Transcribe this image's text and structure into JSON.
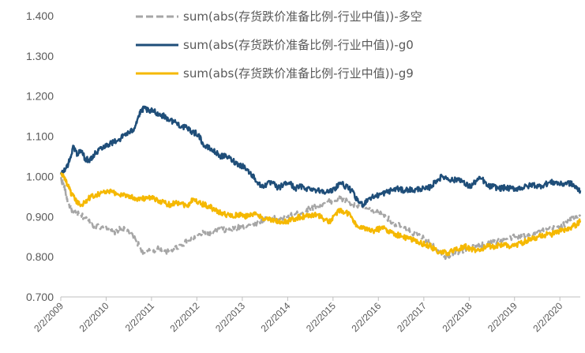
{
  "chart_data": {
    "type": "line",
    "title": "",
    "xlabel": "",
    "ylabel": "",
    "ylim": [
      0.7,
      1.4
    ],
    "y_ticks": [
      "0.700",
      "0.800",
      "0.900",
      "1.000",
      "1.100",
      "1.200",
      "1.300",
      "1.400"
    ],
    "x_ticks": [
      "2/2/2009",
      "2/2/2010",
      "2/2/2011",
      "2/2/2012",
      "2/2/2013",
      "2/2/2014",
      "2/2/2015",
      "2/2/2016",
      "2/2/2017",
      "2/2/2018",
      "2/2/2019",
      "2/2/2020"
    ],
    "x_range": [
      "2009-02-02",
      "2020-07-15"
    ],
    "grid": false,
    "legend_position": "top-center",
    "series": [
      {
        "name": "sum(abs(存货跌价准备比例-行业中值))-多空",
        "color": "#A6A6A6",
        "style": "dashed",
        "points": [
          [
            "2009-02-02",
            0.995
          ],
          [
            "2009-03-01",
            0.975
          ],
          [
            "2009-04-01",
            0.935
          ],
          [
            "2009-05-15",
            0.91
          ],
          [
            "2009-07-01",
            0.905
          ],
          [
            "2009-09-01",
            0.895
          ],
          [
            "2009-11-01",
            0.875
          ],
          [
            "2010-02-02",
            0.875
          ],
          [
            "2010-04-01",
            0.86
          ],
          [
            "2010-06-01",
            0.87
          ],
          [
            "2010-08-01",
            0.865
          ],
          [
            "2010-10-01",
            0.84
          ],
          [
            "2010-12-01",
            0.81
          ],
          [
            "2011-02-02",
            0.815
          ],
          [
            "2011-04-01",
            0.82
          ],
          [
            "2011-06-01",
            0.81
          ],
          [
            "2011-08-01",
            0.82
          ],
          [
            "2011-10-01",
            0.83
          ],
          [
            "2011-12-01",
            0.84
          ],
          [
            "2012-02-02",
            0.85
          ],
          [
            "2012-04-01",
            0.86
          ],
          [
            "2012-06-01",
            0.855
          ],
          [
            "2012-08-01",
            0.87
          ],
          [
            "2012-10-01",
            0.865
          ],
          [
            "2012-12-01",
            0.87
          ],
          [
            "2013-02-02",
            0.875
          ],
          [
            "2013-04-01",
            0.88
          ],
          [
            "2013-06-01",
            0.885
          ],
          [
            "2013-08-01",
            0.895
          ],
          [
            "2013-10-01",
            0.895
          ],
          [
            "2013-12-01",
            0.895
          ],
          [
            "2014-02-02",
            0.9
          ],
          [
            "2014-04-01",
            0.905
          ],
          [
            "2014-06-01",
            0.91
          ],
          [
            "2014-08-01",
            0.92
          ],
          [
            "2014-10-01",
            0.925
          ],
          [
            "2014-12-01",
            0.935
          ],
          [
            "2015-02-02",
            0.94
          ],
          [
            "2015-04-01",
            0.945
          ],
          [
            "2015-05-15",
            0.94
          ],
          [
            "2015-07-01",
            0.93
          ],
          [
            "2015-09-01",
            0.925
          ],
          [
            "2015-11-01",
            0.92
          ],
          [
            "2016-02-02",
            0.91
          ],
          [
            "2016-04-01",
            0.9
          ],
          [
            "2016-06-01",
            0.885
          ],
          [
            "2016-08-01",
            0.875
          ],
          [
            "2016-10-01",
            0.865
          ],
          [
            "2016-12-01",
            0.855
          ],
          [
            "2017-02-02",
            0.845
          ],
          [
            "2017-04-01",
            0.835
          ],
          [
            "2017-06-01",
            0.815
          ],
          [
            "2017-08-01",
            0.8
          ],
          [
            "2017-10-01",
            0.81
          ],
          [
            "2017-12-01",
            0.815
          ],
          [
            "2018-02-02",
            0.82
          ],
          [
            "2018-04-01",
            0.825
          ],
          [
            "2018-06-01",
            0.83
          ],
          [
            "2018-08-01",
            0.835
          ],
          [
            "2018-10-01",
            0.84
          ],
          [
            "2018-12-01",
            0.845
          ],
          [
            "2019-02-02",
            0.85
          ],
          [
            "2019-04-01",
            0.85
          ],
          [
            "2019-06-01",
            0.855
          ],
          [
            "2019-08-01",
            0.86
          ],
          [
            "2019-10-01",
            0.865
          ],
          [
            "2019-12-01",
            0.87
          ],
          [
            "2020-02-02",
            0.875
          ],
          [
            "2020-04-01",
            0.885
          ],
          [
            "2020-06-01",
            0.9
          ],
          [
            "2020-07-15",
            0.905
          ]
        ]
      },
      {
        "name": "sum(abs(存货跌价准备比例-行业中值))-g0",
        "color": "#1F4E79",
        "style": "solid",
        "points": [
          [
            "2009-02-02",
            1.005
          ],
          [
            "2009-03-15",
            1.02
          ],
          [
            "2009-04-15",
            1.04
          ],
          [
            "2009-05-15",
            1.075
          ],
          [
            "2009-06-15",
            1.055
          ],
          [
            "2009-07-15",
            1.065
          ],
          [
            "2009-08-15",
            1.045
          ],
          [
            "2009-09-15",
            1.04
          ],
          [
            "2009-10-15",
            1.05
          ],
          [
            "2009-11-15",
            1.06
          ],
          [
            "2009-12-15",
            1.07
          ],
          [
            "2010-01-15",
            1.075
          ],
          [
            "2010-02-15",
            1.08
          ],
          [
            "2010-04-01",
            1.085
          ],
          [
            "2010-06-01",
            1.095
          ],
          [
            "2010-07-01",
            1.105
          ],
          [
            "2010-08-15",
            1.11
          ],
          [
            "2010-09-15",
            1.12
          ],
          [
            "2010-10-15",
            1.145
          ],
          [
            "2010-11-15",
            1.165
          ],
          [
            "2010-12-15",
            1.17
          ],
          [
            "2011-01-15",
            1.16
          ],
          [
            "2011-02-15",
            1.165
          ],
          [
            "2011-04-01",
            1.155
          ],
          [
            "2011-05-15",
            1.15
          ],
          [
            "2011-07-01",
            1.14
          ],
          [
            "2011-08-15",
            1.135
          ],
          [
            "2011-10-01",
            1.125
          ],
          [
            "2011-11-15",
            1.12
          ],
          [
            "2012-01-01",
            1.11
          ],
          [
            "2012-02-15",
            1.105
          ],
          [
            "2012-04-01",
            1.075
          ],
          [
            "2012-05-15",
            1.07
          ],
          [
            "2012-07-01",
            1.06
          ],
          [
            "2012-08-15",
            1.05
          ],
          [
            "2012-10-01",
            1.05
          ],
          [
            "2012-11-15",
            1.04
          ],
          [
            "2013-01-01",
            1.03
          ],
          [
            "2013-02-15",
            1.025
          ],
          [
            "2013-04-01",
            1.01
          ],
          [
            "2013-05-15",
            0.995
          ],
          [
            "2013-07-01",
            0.975
          ],
          [
            "2013-08-15",
            0.98
          ],
          [
            "2013-10-01",
            0.985
          ],
          [
            "2013-11-15",
            0.97
          ],
          [
            "2014-01-01",
            0.98
          ],
          [
            "2014-02-15",
            0.985
          ],
          [
            "2014-04-01",
            0.97
          ],
          [
            "2014-05-15",
            0.975
          ],
          [
            "2014-07-01",
            0.97
          ],
          [
            "2014-08-15",
            0.97
          ],
          [
            "2014-10-01",
            0.965
          ],
          [
            "2014-11-15",
            0.965
          ],
          [
            "2015-01-01",
            0.96
          ],
          [
            "2015-02-15",
            0.97
          ],
          [
            "2015-04-01",
            0.985
          ],
          [
            "2015-05-15",
            0.975
          ],
          [
            "2015-07-01",
            0.965
          ],
          [
            "2015-08-15",
            0.94
          ],
          [
            "2015-10-01",
            0.93
          ],
          [
            "2015-11-15",
            0.945
          ],
          [
            "2016-01-01",
            0.95
          ],
          [
            "2016-02-15",
            0.955
          ],
          [
            "2016-04-01",
            0.96
          ],
          [
            "2016-05-15",
            0.965
          ],
          [
            "2016-07-01",
            0.97
          ],
          [
            "2016-08-15",
            0.965
          ],
          [
            "2016-10-01",
            0.968
          ],
          [
            "2016-11-15",
            0.965
          ],
          [
            "2017-01-01",
            0.97
          ],
          [
            "2017-02-15",
            0.968
          ],
          [
            "2017-04-01",
            0.975
          ],
          [
            "2017-05-15",
            0.99
          ],
          [
            "2017-07-01",
            1.0
          ],
          [
            "2017-08-15",
            0.995
          ],
          [
            "2017-10-01",
            0.99
          ],
          [
            "2017-11-15",
            0.995
          ],
          [
            "2018-01-01",
            0.98
          ],
          [
            "2018-02-15",
            0.975
          ],
          [
            "2018-04-01",
            0.99
          ],
          [
            "2018-05-15",
            0.995
          ],
          [
            "2018-07-01",
            0.975
          ],
          [
            "2018-08-15",
            0.975
          ],
          [
            "2018-10-01",
            0.97
          ],
          [
            "2018-11-15",
            0.972
          ],
          [
            "2019-01-01",
            0.97
          ],
          [
            "2019-02-15",
            0.97
          ],
          [
            "2019-04-01",
            0.972
          ],
          [
            "2019-05-15",
            0.975
          ],
          [
            "2019-07-01",
            0.98
          ],
          [
            "2019-08-15",
            0.975
          ],
          [
            "2019-10-01",
            0.98
          ],
          [
            "2019-11-15",
            0.985
          ],
          [
            "2020-01-01",
            0.985
          ],
          [
            "2020-02-15",
            0.98
          ],
          [
            "2020-04-01",
            0.985
          ],
          [
            "2020-05-15",
            0.98
          ],
          [
            "2020-06-15",
            0.97
          ],
          [
            "2020-07-15",
            0.965
          ]
        ]
      },
      {
        "name": "sum(abs(存货跌价准备比例-行业中值))-g9",
        "color": "#F5B800",
        "style": "solid",
        "points": [
          [
            "2009-02-02",
            1.005
          ],
          [
            "2009-03-01",
            1.0
          ],
          [
            "2009-04-01",
            0.975
          ],
          [
            "2009-05-01",
            0.955
          ],
          [
            "2009-06-01",
            0.94
          ],
          [
            "2009-07-01",
            0.93
          ],
          [
            "2009-08-15",
            0.935
          ],
          [
            "2009-10-01",
            0.95
          ],
          [
            "2009-11-15",
            0.955
          ],
          [
            "2010-01-01",
            0.96
          ],
          [
            "2010-02-15",
            0.962
          ],
          [
            "2010-04-01",
            0.96
          ],
          [
            "2010-05-15",
            0.955
          ],
          [
            "2010-07-01",
            0.955
          ],
          [
            "2010-08-15",
            0.95
          ],
          [
            "2010-10-01",
            0.945
          ],
          [
            "2010-11-15",
            0.945
          ],
          [
            "2011-01-01",
            0.945
          ],
          [
            "2011-02-15",
            0.945
          ],
          [
            "2011-04-01",
            0.94
          ],
          [
            "2011-05-15",
            0.935
          ],
          [
            "2011-07-01",
            0.93
          ],
          [
            "2011-08-15",
            0.935
          ],
          [
            "2011-10-01",
            0.935
          ],
          [
            "2011-11-15",
            0.925
          ],
          [
            "2012-01-01",
            0.945
          ],
          [
            "2012-02-15",
            0.935
          ],
          [
            "2012-04-01",
            0.93
          ],
          [
            "2012-05-15",
            0.925
          ],
          [
            "2012-07-01",
            0.915
          ],
          [
            "2012-08-15",
            0.91
          ],
          [
            "2012-10-01",
            0.905
          ],
          [
            "2012-11-15",
            0.9
          ],
          [
            "2013-01-01",
            0.905
          ],
          [
            "2013-02-15",
            0.9
          ],
          [
            "2013-04-01",
            0.905
          ],
          [
            "2013-05-15",
            0.905
          ],
          [
            "2013-07-01",
            0.9
          ],
          [
            "2013-08-15",
            0.895
          ],
          [
            "2013-10-01",
            0.89
          ],
          [
            "2013-11-15",
            0.888
          ],
          [
            "2014-01-01",
            0.885
          ],
          [
            "2014-02-15",
            0.89
          ],
          [
            "2014-04-01",
            0.895
          ],
          [
            "2014-05-15",
            0.9
          ],
          [
            "2014-07-01",
            0.9
          ],
          [
            "2014-08-15",
            0.905
          ],
          [
            "2014-10-01",
            0.905
          ],
          [
            "2014-11-15",
            0.895
          ],
          [
            "2015-01-01",
            0.885
          ],
          [
            "2015-02-15",
            0.905
          ],
          [
            "2015-04-01",
            0.915
          ],
          [
            "2015-05-15",
            0.91
          ],
          [
            "2015-07-01",
            0.9
          ],
          [
            "2015-08-15",
            0.875
          ],
          [
            "2015-10-01",
            0.87
          ],
          [
            "2015-11-15",
            0.87
          ],
          [
            "2016-01-01",
            0.865
          ],
          [
            "2016-02-15",
            0.87
          ],
          [
            "2016-04-01",
            0.87
          ],
          [
            "2016-05-15",
            0.86
          ],
          [
            "2016-07-01",
            0.855
          ],
          [
            "2016-08-15",
            0.85
          ],
          [
            "2016-10-01",
            0.845
          ],
          [
            "2016-11-15",
            0.84
          ],
          [
            "2017-01-01",
            0.835
          ],
          [
            "2017-02-15",
            0.83
          ],
          [
            "2017-04-01",
            0.825
          ],
          [
            "2017-05-15",
            0.815
          ],
          [
            "2017-07-01",
            0.81
          ],
          [
            "2017-08-15",
            0.81
          ],
          [
            "2017-10-01",
            0.815
          ],
          [
            "2017-11-15",
            0.82
          ],
          [
            "2018-01-01",
            0.825
          ],
          [
            "2018-02-15",
            0.82
          ],
          [
            "2018-04-01",
            0.815
          ],
          [
            "2018-05-15",
            0.82
          ],
          [
            "2018-07-01",
            0.825
          ],
          [
            "2018-08-15",
            0.825
          ],
          [
            "2018-10-01",
            0.83
          ],
          [
            "2018-11-15",
            0.83
          ],
          [
            "2019-01-01",
            0.825
          ],
          [
            "2019-02-15",
            0.83
          ],
          [
            "2019-04-01",
            0.835
          ],
          [
            "2019-05-15",
            0.84
          ],
          [
            "2019-07-01",
            0.845
          ],
          [
            "2019-08-15",
            0.85
          ],
          [
            "2019-10-01",
            0.855
          ],
          [
            "2019-11-15",
            0.855
          ],
          [
            "2020-01-01",
            0.86
          ],
          [
            "2020-02-15",
            0.865
          ],
          [
            "2020-04-01",
            0.865
          ],
          [
            "2020-05-15",
            0.875
          ],
          [
            "2020-06-15",
            0.88
          ],
          [
            "2020-07-15",
            0.89
          ]
        ]
      }
    ]
  }
}
